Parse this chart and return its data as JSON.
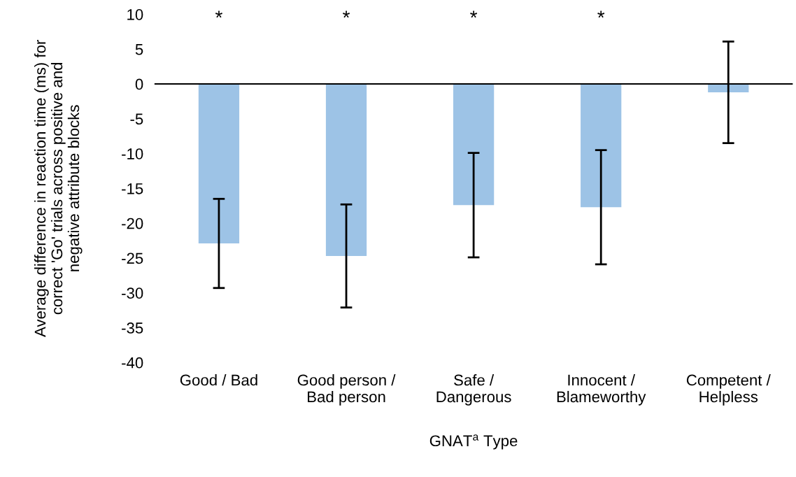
{
  "chart_data": {
    "type": "bar",
    "categories": [
      "Good / Bad",
      "Good person /\nBad person",
      "Safe /\nDangerous",
      "Innocent /\nBlameworthy",
      "Competent /\nHelpless"
    ],
    "values": [
      -22.9,
      -24.7,
      -17.4,
      -17.7,
      -1.2
    ],
    "errors": [
      6.4,
      7.4,
      7.5,
      8.2,
      7.3
    ],
    "color": "#9dc3e6",
    "ylim": [
      -40,
      10
    ],
    "yticks": [
      -40,
      -35,
      -30,
      -25,
      -20,
      -15,
      -10,
      -5,
      0,
      5,
      10
    ],
    "xlabel": "GNAT$^{a}$ Type",
    "ylabel": "Average difference in reaction time (ms) for\ncorrect 'Go' trials across positive and\nnegative attribute blocks",
    "annotations": [
      "*",
      "*",
      "*",
      "*"
    ]
  }
}
